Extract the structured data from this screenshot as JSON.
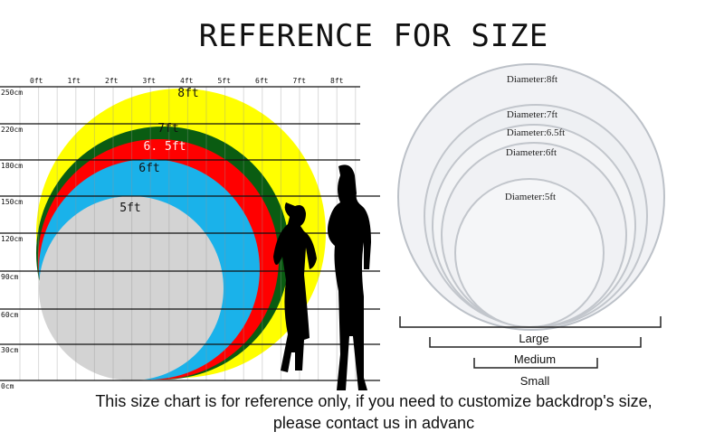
{
  "title": "REFERENCE FOR SIZE",
  "caption_line1": "This size chart is for reference only, if you need to customize backdrop's size,",
  "caption_line2": "please contact us in advanc",
  "ft_axis": [
    "0ft",
    "1ft",
    "2ft",
    "3ft",
    "4ft",
    "5ft",
    "6ft",
    "7ft",
    "8ft"
  ],
  "cm_axis": [
    "250cm",
    "220cm",
    "180cm",
    "150cm",
    "120cm",
    "90cm",
    "60cm",
    "30cm",
    "0cm"
  ],
  "circles": [
    {
      "label": "8ft",
      "color": "#ffff00"
    },
    {
      "label": "7ft",
      "color": "#0a5c12"
    },
    {
      "label": "6. 5ft",
      "color": "#ff0000"
    },
    {
      "label": "6ft",
      "color": "#1ab2ea"
    },
    {
      "label": "5ft",
      "color": "#d3d3d3"
    }
  ],
  "photo_labels": [
    "Diameter:8ft",
    "Diameter:7ft",
    "Diameter:6.5ft",
    "Diameter:6ft",
    "Diameter:5ft"
  ],
  "brackets": [
    "Large",
    "Medium",
    "Small"
  ]
}
